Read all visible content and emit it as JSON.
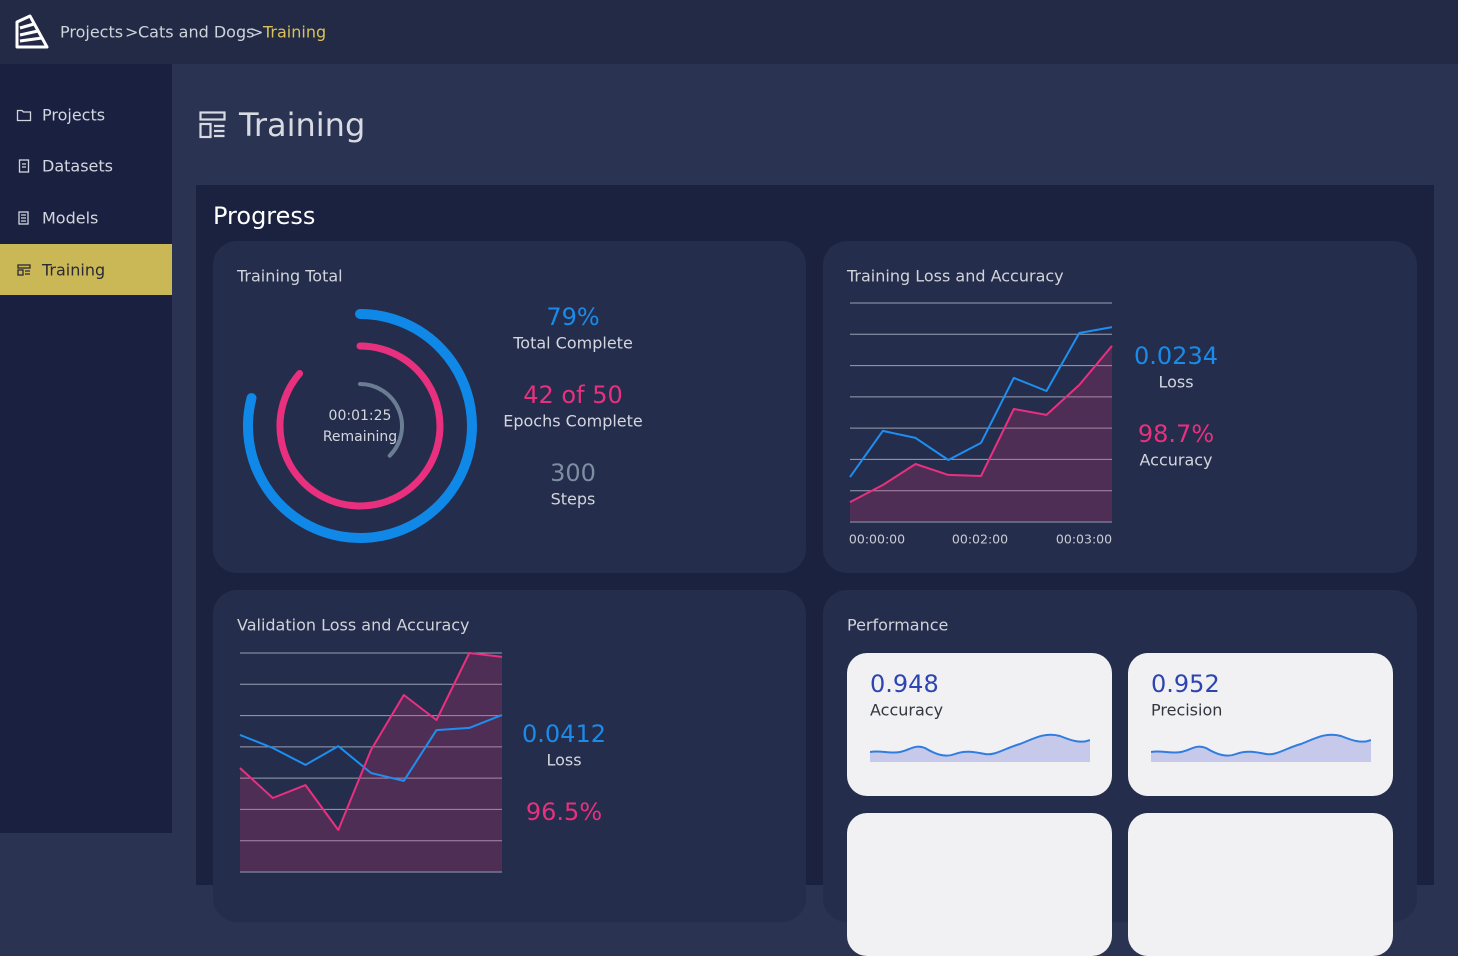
{
  "breadcrumb": {
    "items": [
      "Projects",
      "Cats and Dogs",
      "Training"
    ],
    "separator": ">"
  },
  "sidebar": {
    "items": [
      "Projects",
      "Datasets",
      "Models",
      "Training"
    ],
    "active": 3
  },
  "page_title": "Training",
  "section_title": "Progress",
  "training_total": {
    "title": "Training Total",
    "remaining": "00:01:25",
    "remaining_label": "Remaining",
    "stats": [
      {
        "value": "79%",
        "label": "Total Complete"
      },
      {
        "value": "42 of 50",
        "label": "Epochs Complete"
      },
      {
        "value": "300",
        "label": "Steps"
      }
    ]
  },
  "training_chart": {
    "type": "line",
    "title": "Training Loss and Accuracy",
    "ylim": [
      0,
      100
    ],
    "x_labels": [
      "00:00:00",
      "00:02:00",
      "00:03:00"
    ],
    "series": [
      {
        "color": "#1e8ff0",
        "values": [
          20.5,
          41.6,
          38.4,
          28.3,
          36.1,
          65.8,
          59.8,
          86.3,
          89.0
        ]
      },
      {
        "color": "#e8307f",
        "fill": true,
        "values": [
          9.1,
          16.9,
          26.5,
          21.5,
          21.0,
          51.6,
          48.9,
          62.6,
          80.4
        ]
      }
    ],
    "stats": [
      {
        "value": "0.0234",
        "label": "Loss"
      },
      {
        "value": "98.7%",
        "label": "Accuracy"
      }
    ]
  },
  "validation_chart": {
    "type": "line",
    "title": "Validation Loss and Accuracy",
    "ylim": [
      0,
      100
    ],
    "series": [
      {
        "color": "#1e8ff0",
        "values": [
          62.6,
          56.6,
          48.9,
          57.5,
          45.2,
          41.6,
          64.8,
          65.8,
          71.7
        ]
      },
      {
        "color": "#e8307f",
        "fill": true,
        "values": [
          47.5,
          33.8,
          39.7,
          19.2,
          55.7,
          80.8,
          69.4,
          100,
          98.2
        ]
      }
    ],
    "stats": [
      {
        "value": "0.0412",
        "label": "Loss"
      },
      {
        "value": "96.5%"
      }
    ]
  },
  "performance": {
    "title": "Performance",
    "cards": [
      {
        "value": "0.948",
        "label": "Accuracy"
      },
      {
        "value": "0.952",
        "label": "Precision"
      }
    ]
  }
}
